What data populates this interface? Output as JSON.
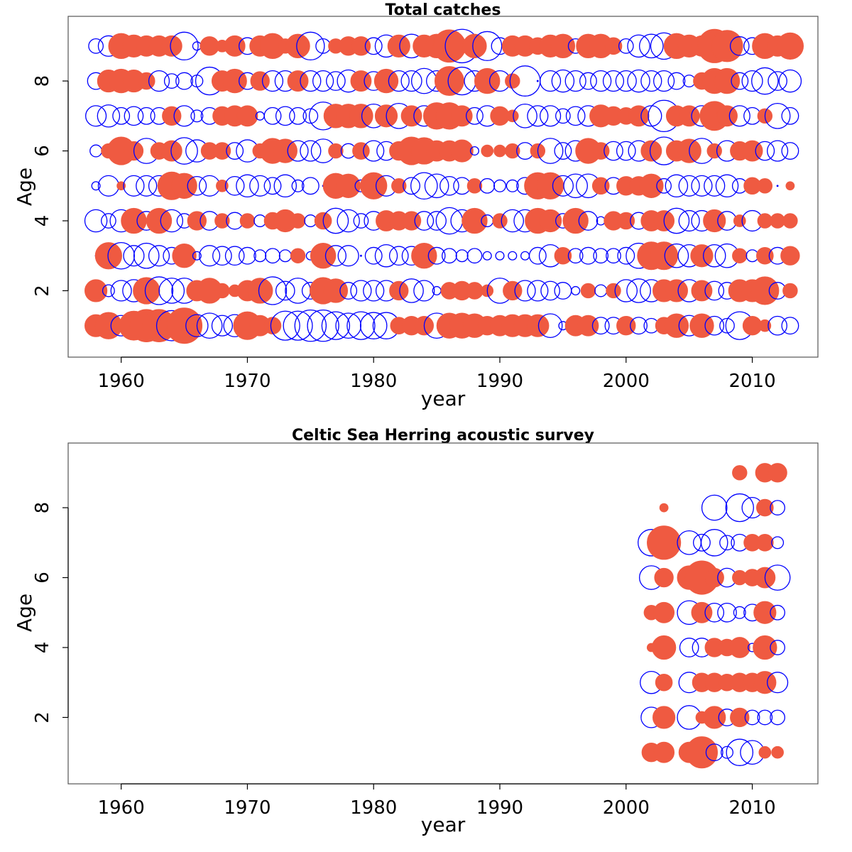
{
  "chart_data": [
    {
      "type": "scatter",
      "subtype": "bubble",
      "title": "Total catches",
      "xlabel": "year",
      "ylabel": "Age",
      "xlim": [
        1955.8,
        2015.2
      ],
      "ylim": [
        0.1,
        9.85
      ],
      "xticks": [
        1960,
        1970,
        1980,
        1990,
        2000,
        2010
      ],
      "yticks": [
        2,
        4,
        6,
        8
      ],
      "colors": {
        "positive": "#0000ff",
        "negative": "#ef5a41"
      },
      "encoding": "bubble area ~ |residual|; value > 0 open blue circle, value < 0 filled red disc",
      "years": [
        1958,
        1959,
        1960,
        1961,
        1962,
        1963,
        1964,
        1965,
        1966,
        1967,
        1968,
        1969,
        1970,
        1971,
        1972,
        1973,
        1974,
        1975,
        1976,
        1977,
        1978,
        1979,
        1980,
        1981,
        1982,
        1983,
        1984,
        1985,
        1986,
        1987,
        1988,
        1989,
        1990,
        1991,
        1992,
        1993,
        1994,
        1995,
        1996,
        1997,
        1998,
        1999,
        2000,
        2001,
        2002,
        2003,
        2004,
        2005,
        2006,
        2007,
        2008,
        2009,
        2010,
        2011,
        2012,
        2013
      ],
      "ages": [
        1,
        2,
        3,
        4,
        5,
        6,
        7,
        8,
        9
      ],
      "residuals": {
        "1": [
          -0.7,
          -1.0,
          0.6,
          -1.2,
          -1.5,
          -1.5,
          1.3,
          -1.8,
          0.7,
          0.9,
          0.6,
          0.7,
          -1.1,
          -0.6,
          -0.4,
          1.2,
          1.2,
          1.4,
          1.4,
          1.1,
          0.9,
          1.1,
          1.0,
          1.0,
          -0.4,
          -0.5,
          -0.5,
          0.9,
          -0.9,
          -0.9,
          -0.8,
          -0.5,
          -0.6,
          -0.7,
          -0.7,
          -0.7,
          0.8,
          0.1,
          -0.6,
          -0.6,
          0.4,
          0.4,
          -0.5,
          0.4,
          0.3,
          -0.4,
          -0.8,
          0.6,
          -0.8,
          0.5,
          0.3,
          1.1,
          -0.5,
          -0.2,
          0.5,
          0.4
        ],
        "2": [
          -0.7,
          0.2,
          0.6,
          0.7,
          -1.0,
          1.1,
          0.9,
          0.9,
          -0.6,
          -0.9,
          -0.3,
          -0.2,
          -0.6,
          -0.9,
          1.1,
          0.5,
          0.9,
          0.4,
          -1.0,
          -0.8,
          0.4,
          0.6,
          0.6,
          0.6,
          -0.5,
          0.8,
          0.6,
          0.1,
          -0.4,
          -0.5,
          -0.4,
          -0.2,
          0.9,
          -0.5,
          0.6,
          0.6,
          0.5,
          0.4,
          0.1,
          -0.3,
          0.2,
          -0.3,
          0.7,
          0.8,
          0.7,
          -0.7,
          -0.7,
          0.7,
          -0.6,
          0.5,
          0.4,
          -0.7,
          -0.7,
          -1.1,
          0.4,
          -0.3
        ],
        "3": [
          0.0,
          -1.0,
          1.0,
          0.6,
          0.9,
          0.6,
          0.4,
          -0.8,
          0.1,
          0.6,
          0.5,
          0.5,
          0.4,
          0.2,
          0.3,
          0.2,
          -0.3,
          0.1,
          -0.9,
          0.6,
          0.6,
          0.0,
          0.4,
          0.7,
          0.5,
          0.5,
          -0.9,
          0.4,
          0.3,
          0.2,
          0.3,
          0.1,
          0.1,
          0.1,
          0.1,
          0.4,
          0.7,
          -0.4,
          0.3,
          0.4,
          0.3,
          0.3,
          0.4,
          0.9,
          -1.1,
          -1.1,
          0.8,
          0.7,
          -0.7,
          0.7,
          0.8,
          -0.3,
          0.2,
          -0.4,
          0.4,
          -0.5
        ],
        "4": [
          0.7,
          0.3,
          0.7,
          -0.9,
          0.5,
          -0.9,
          0.7,
          0.3,
          -0.5,
          0.5,
          -0.3,
          0.4,
          -0.3,
          0.2,
          -0.4,
          -0.7,
          -0.3,
          0.2,
          -0.4,
          0.9,
          0.7,
          0.3,
          0.5,
          -0.6,
          -0.5,
          -0.5,
          0.5,
          0.5,
          1.0,
          0.7,
          -0.9,
          0.2,
          -0.3,
          0.7,
          0.7,
          -0.9,
          -0.7,
          0.3,
          -0.9,
          0.5,
          0.1,
          -0.5,
          -0.4,
          0.4,
          -0.6,
          -0.6,
          0.9,
          0.6,
          0.6,
          -0.7,
          0.5,
          -0.2,
          0.6,
          -0.3,
          -0.3,
          -0.3
        ],
        "5": [
          0.1,
          0.6,
          -0.1,
          0.6,
          0.6,
          0.6,
          -1.1,
          -0.9,
          0.5,
          0.6,
          -0.2,
          0.5,
          0.7,
          0.6,
          0.4,
          0.7,
          0.2,
          0.4,
          0.0,
          -0.9,
          -0.8,
          0.2,
          -1.0,
          0.6,
          -0.3,
          0.4,
          1.0,
          0.8,
          0.5,
          0.4,
          -0.3,
          0.3,
          0.2,
          0.2,
          0.4,
          -1.0,
          -1.0,
          0.6,
          0.8,
          0.8,
          -0.4,
          0.4,
          -0.5,
          -0.5,
          -0.8,
          0.3,
          0.7,
          0.6,
          0.6,
          0.6,
          0.7,
          0.3,
          -0.4,
          -0.3,
          0.0,
          -0.1
        ],
        "6": [
          0.2,
          -0.3,
          -1.1,
          -0.5,
          0.9,
          -0.4,
          -0.6,
          1.0,
          0.7,
          -0.4,
          -0.4,
          0.4,
          0.7,
          -0.3,
          -0.9,
          -0.8,
          0.6,
          0.6,
          0.8,
          -0.3,
          0.3,
          -0.4,
          0.6,
          0.5,
          -0.5,
          -1.1,
          -1.0,
          -0.6,
          -0.6,
          -0.7,
          0.1,
          -0.2,
          -0.2,
          -0.3,
          0.4,
          -0.3,
          0.9,
          0.4,
          0.6,
          -0.9,
          -0.4,
          0.5,
          0.5,
          0.6,
          -0.6,
          1.1,
          -0.6,
          -0.8,
          0.9,
          -0.3,
          0.6,
          -0.5,
          -0.6,
          0.5,
          0.6,
          0.4
        ],
        "7": [
          0.6,
          0.7,
          0.4,
          0.5,
          0.4,
          0.4,
          -0.5,
          0.6,
          0.2,
          0.4,
          -0.5,
          -0.6,
          -0.6,
          0.1,
          0.4,
          0.5,
          0.4,
          0.3,
          1.1,
          -0.8,
          -0.8,
          -0.8,
          0.8,
          -0.7,
          0.9,
          -0.6,
          0.6,
          -1.0,
          -1.0,
          -0.6,
          0.4,
          0.6,
          -0.5,
          -0.2,
          0.8,
          0.6,
          0.6,
          0.3,
          0.5,
          0.6,
          -0.7,
          -0.5,
          -0.4,
          -0.6,
          0.6,
          1.4,
          -0.6,
          -0.6,
          0.6,
          -1.2,
          -0.6,
          0.6,
          0.4,
          -0.3,
          0.9,
          0.4
        ],
        "8": [
          0.4,
          -0.7,
          -0.8,
          -0.7,
          -0.4,
          0.6,
          0.3,
          0.4,
          0.2,
          1.1,
          -0.6,
          -0.8,
          0.4,
          -0.5,
          0.6,
          0.6,
          -0.6,
          0.6,
          0.6,
          0.5,
          0.7,
          -0.6,
          0.5,
          -0.8,
          0.6,
          0.6,
          0.9,
          0.6,
          -1.2,
          1.1,
          0.6,
          -0.9,
          0.6,
          -0.3,
          1.3,
          0.0,
          0.6,
          0.7,
          0.6,
          0.4,
          0.6,
          0.6,
          0.6,
          0.7,
          0.6,
          0.6,
          0.4,
          0.2,
          -0.4,
          -0.9,
          -0.9,
          0.4,
          0.6,
          1.0,
          0.5,
          0.7
        ],
        "9": [
          0.3,
          0.6,
          -0.9,
          -0.7,
          -0.6,
          -0.6,
          -0.6,
          1.1,
          0.1,
          -0.5,
          -0.2,
          -0.6,
          0.4,
          -0.6,
          -0.9,
          -0.3,
          -0.8,
          1.1,
          0.3,
          -0.3,
          -0.5,
          -0.5,
          0.4,
          0.7,
          -0.7,
          0.8,
          -0.7,
          -0.8,
          -1.5,
          1.6,
          -0.8,
          1.2,
          0.4,
          -0.6,
          -0.6,
          -0.4,
          -0.7,
          -0.8,
          0.3,
          -0.8,
          -0.8,
          -0.4,
          0.3,
          0.7,
          0.8,
          1.0,
          -0.9,
          -0.7,
          -0.6,
          -1.6,
          -1.4,
          0.5,
          0.4,
          -0.9,
          -0.6,
          -1.0
        ]
      }
    },
    {
      "type": "scatter",
      "subtype": "bubble",
      "title": "Celtic Sea Herring acoustic survey",
      "xlabel": "year",
      "ylabel": "Age",
      "xlim": [
        1955.8,
        2015.2
      ],
      "ylim": [
        0.1,
        9.85
      ],
      "xticks": [
        1960,
        1970,
        1980,
        1990,
        2000,
        2010
      ],
      "yticks": [
        2,
        4,
        6,
        8
      ],
      "colors": {
        "positive": "#0000ff",
        "negative": "#ef5a41"
      },
      "encoding": "bubble area ~ |residual|; value > 0 open blue circle, value < 0 filled red disc",
      "years": [
        2002,
        2003,
        2004,
        2005,
        2006,
        2007,
        2008,
        2009,
        2010,
        2011,
        2012
      ],
      "ages": [
        1,
        2,
        3,
        4,
        5,
        6,
        7,
        8,
        9
      ],
      "residuals": {
        "1": [
          -0.5,
          -0.6,
          null,
          -0.6,
          -1.4,
          0.4,
          0.2,
          1.0,
          0.8,
          -0.2,
          -0.2
        ],
        "2": [
          0.6,
          -0.7,
          null,
          0.8,
          -0.2,
          -0.7,
          0.4,
          -0.5,
          0.3,
          0.3,
          0.3
        ],
        "3": [
          0.7,
          -0.4,
          null,
          0.6,
          -0.5,
          -0.5,
          -0.4,
          -0.5,
          -0.5,
          -0.7,
          0.6
        ],
        "4": [
          -0.1,
          -0.8,
          null,
          0.5,
          0.5,
          -0.5,
          -0.4,
          -0.6,
          0.1,
          -0.8,
          0.3
        ],
        "5": [
          -0.3,
          -0.6,
          null,
          0.8,
          -0.6,
          0.5,
          0.5,
          0.2,
          0.4,
          -0.7,
          0.3
        ],
        "6": [
          0.8,
          -0.5,
          null,
          -0.8,
          -1.6,
          -0.5,
          0.5,
          -0.3,
          -0.4,
          -0.6,
          0.9
        ],
        "7": [
          1.0,
          -1.6,
          null,
          0.8,
          0.4,
          1.0,
          0.3,
          0.4,
          -0.4,
          -0.4,
          0.2
        ],
        "8": [
          null,
          -0.1,
          null,
          null,
          null,
          0.9,
          null,
          1.1,
          0.6,
          -0.4,
          0.3
        ],
        "9": [
          null,
          null,
          null,
          null,
          null,
          null,
          null,
          -0.3,
          null,
          -0.5,
          -0.5
        ]
      }
    }
  ]
}
